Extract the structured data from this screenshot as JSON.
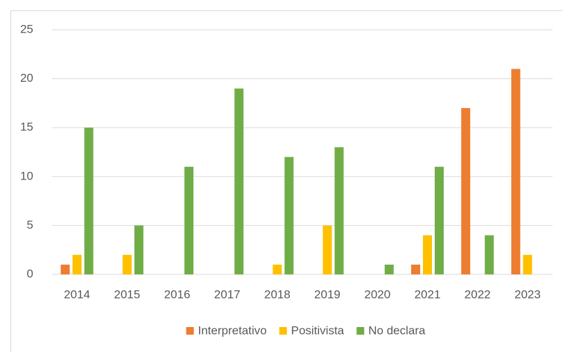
{
  "chart_data": {
    "type": "bar",
    "categories": [
      "2014",
      "2015",
      "2016",
      "2017",
      "2018",
      "2019",
      "2020",
      "2021",
      "2022",
      "2023"
    ],
    "series": [
      {
        "name": "Interpretativo",
        "color": "#ed7d31",
        "values": [
          1,
          0,
          0,
          0,
          0,
          0,
          0,
          1,
          17,
          21
        ]
      },
      {
        "name": "Positivista",
        "color": "#ffc000",
        "values": [
          2,
          2,
          0,
          0,
          1,
          5,
          0,
          4,
          0,
          2
        ]
      },
      {
        "name": "No declara",
        "color": "#70ad47",
        "values": [
          15,
          5,
          11,
          19,
          12,
          13,
          1,
          11,
          4,
          0
        ]
      }
    ],
    "ylim": [
      0,
      25
    ],
    "yticks": [
      0,
      5,
      10,
      15,
      20,
      25
    ],
    "grid": true,
    "legend": "bottom"
  }
}
